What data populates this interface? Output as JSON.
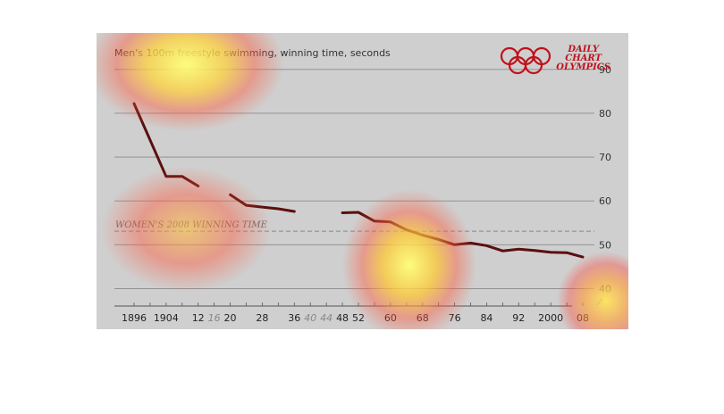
{
  "header": {
    "title": "Men's 100m freestyle swimming, winning time, seconds",
    "brand_lines": [
      "DAILY",
      "CHART",
      "OLYMPICS"
    ]
  },
  "colors": {
    "background": "#cfcfcf",
    "line": "#5a0f0f",
    "grid": "#8a8a8a",
    "reference": "#7a8aa0",
    "brand": "#c0111b",
    "text": "#333333"
  },
  "chart_data": {
    "type": "line",
    "title": "Men's 100m freestyle swimming, winning time, seconds",
    "xlabel": "",
    "ylabel": "",
    "ylim": [
      35,
      92
    ],
    "y_ticks": [
      40,
      50,
      60,
      70,
      80,
      90
    ],
    "y_axis_side": "right",
    "grid": true,
    "x_ticks": [
      {
        "year": 1896,
        "label": "1896",
        "held": true
      },
      {
        "year": 1904,
        "label": "1904",
        "held": true
      },
      {
        "year": 1912,
        "label": "12",
        "held": true
      },
      {
        "year": 1916,
        "label": "16",
        "held": false
      },
      {
        "year": 1920,
        "label": "20",
        "held": true
      },
      {
        "year": 1928,
        "label": "28",
        "held": true
      },
      {
        "year": 1936,
        "label": "36",
        "held": true
      },
      {
        "year": 1940,
        "label": "40",
        "held": false
      },
      {
        "year": 1944,
        "label": "44",
        "held": false
      },
      {
        "year": 1948,
        "label": "48",
        "held": true
      },
      {
        "year": 1952,
        "label": "52",
        "held": true
      },
      {
        "year": 1960,
        "label": "60",
        "held": true
      },
      {
        "year": 1968,
        "label": "68",
        "held": true
      },
      {
        "year": 1976,
        "label": "76",
        "held": true
      },
      {
        "year": 1984,
        "label": "84",
        "held": true
      },
      {
        "year": 1992,
        "label": "92",
        "held": true
      },
      {
        "year": 2000,
        "label": "2000",
        "held": true
      },
      {
        "year": 2008,
        "label": "08",
        "held": true
      }
    ],
    "series": [
      {
        "segments": [
          [
            [
              1896,
              82.2
            ],
            [
              1904,
              65.6
            ],
            [
              1908,
              65.6
            ],
            [
              1912,
              63.4
            ]
          ],
          [
            [
              1920,
              61.4
            ],
            [
              1924,
              59.0
            ],
            [
              1928,
              58.6
            ],
            [
              1932,
              58.2
            ],
            [
              1936,
              57.6
            ]
          ],
          [
            [
              1948,
              57.3
            ],
            [
              1952,
              57.4
            ],
            [
              1956,
              55.4
            ],
            [
              1960,
              55.2
            ],
            [
              1964,
              53.4
            ],
            [
              1968,
              52.2
            ],
            [
              1972,
              51.2
            ],
            [
              1976,
              50.0
            ],
            [
              1980,
              50.4
            ],
            [
              1984,
              49.8
            ],
            [
              1988,
              48.6
            ],
            [
              1992,
              49.0
            ],
            [
              1996,
              48.7
            ],
            [
              2000,
              48.3
            ],
            [
              2004,
              48.2
            ],
            [
              2008,
              47.2
            ]
          ]
        ]
      }
    ],
    "reference_line": {
      "label": "WOMEN'S 2008 WINNING TIME",
      "value": 53.1
    },
    "axis_break_symbol": "⁄⁄"
  }
}
